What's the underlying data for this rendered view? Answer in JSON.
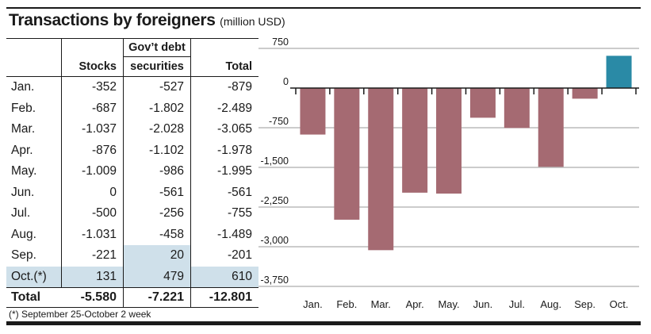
{
  "title": "Transactions by foreigners",
  "subtitle": "(million USD)",
  "table": {
    "header_top": {
      "gov_debt": "Gov’t debt"
    },
    "header": {
      "stocks": "Stocks",
      "gov_debt": "securities",
      "total": "Total"
    },
    "rows": [
      {
        "month": "Jan.",
        "stocks": "-352",
        "gov": "-527",
        "total": "-879"
      },
      {
        "month": "Feb.",
        "stocks": "-687",
        "gov": "-1.802",
        "total": "-2.489"
      },
      {
        "month": "Mar.",
        "stocks": "-1.037",
        "gov": "-2.028",
        "total": "-3.065"
      },
      {
        "month": "Apr.",
        "stocks": "-876",
        "gov": "-1.102",
        "total": "-1.978"
      },
      {
        "month": "May.",
        "stocks": "-1.009",
        "gov": "-986",
        "total": "-1.995"
      },
      {
        "month": "Jun.",
        "stocks": "0",
        "gov": "-561",
        "total": "-561"
      },
      {
        "month": "Jul.",
        "stocks": "-500",
        "gov": "-256",
        "total": "-755"
      },
      {
        "month": "Aug.",
        "stocks": "-1.031",
        "gov": "-458",
        "total": "-1.489"
      },
      {
        "month": "Sep.",
        "stocks": "-221",
        "gov": "20",
        "total": "-201"
      },
      {
        "month": "Oct.(*)",
        "stocks": "131",
        "gov": "479",
        "total": "610"
      }
    ],
    "total_row": {
      "label": "Total",
      "stocks": "-5.580",
      "gov": "-7.221",
      "total": "-12.801"
    }
  },
  "footnote": "(*) September 25-October 2 week",
  "colors": {
    "negative_bar": "#a56a72",
    "positive_bar": "#2a8aa6",
    "highlight": "#cfe0ea",
    "gridline": "#9a9a9a"
  },
  "chart_data": {
    "type": "bar",
    "categories": [
      "Jan.",
      "Feb.",
      "Mar.",
      "Apr.",
      "May.",
      "Jun.",
      "Jul.",
      "Aug.",
      "Sep.",
      "Oct."
    ],
    "values": [
      -879,
      -2489,
      -3065,
      -1978,
      -1995,
      -561,
      -755,
      -1489,
      -201,
      610
    ],
    "ylim": [
      -3750,
      750
    ],
    "yticks": [
      750,
      0,
      -750,
      -1500,
      -2250,
      -3000,
      -3750
    ],
    "ytick_labels": [
      "750",
      "0",
      "-750",
      "-1,500",
      "-2,250",
      "-3,000",
      "-3,750"
    ],
    "grid": true
  }
}
